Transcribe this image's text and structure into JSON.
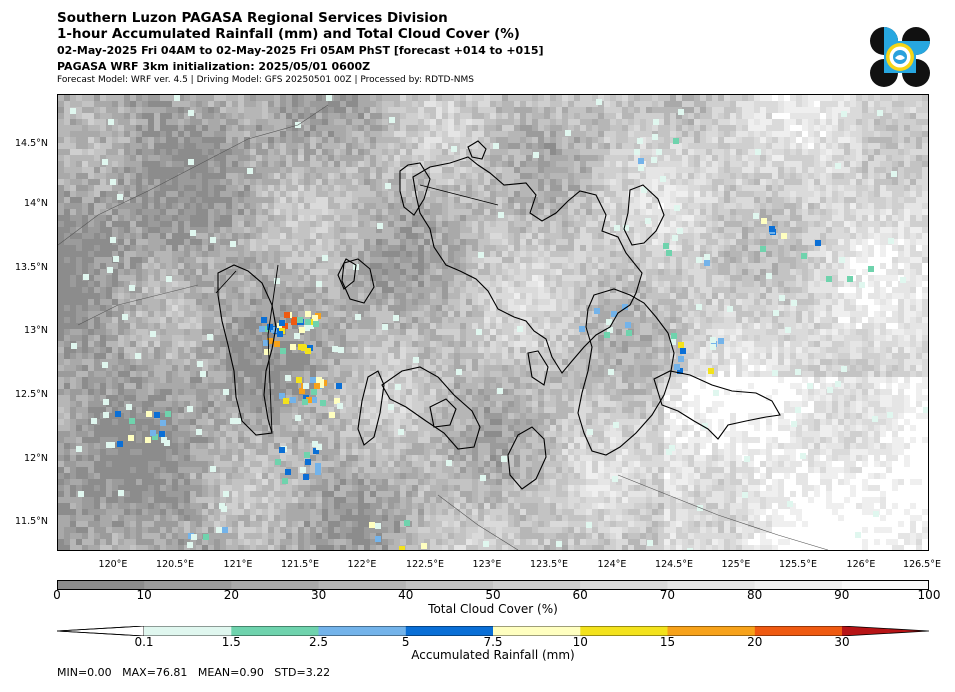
{
  "header": {
    "line1": "Southern Luzon PAGASA Regional Services Division",
    "line2": "1-hour Accumulated Rainfall (mm) and Total Cloud Cover (%)",
    "line3": "02-May-2025 Fri 04AM to 02-May-2025 Fri 05AM PhST [forecast +014 to +015]",
    "line4": "PAGASA WRF 3km initialization: 2025/05/01 0600Z",
    "line5": "Forecast Model: WRF ver. 4.5 | Driving Model: GFS 20250501 00Z | Processed by: RDTD-NMS"
  },
  "map": {
    "lat_ticks": [
      "14.5°N",
      "14°N",
      "13.5°N",
      "13°N",
      "12.5°N",
      "12°N",
      "11.5°N"
    ],
    "lon_ticks": [
      "120°E",
      "120.5°E",
      "121°E",
      "121.5°E",
      "122°E",
      "122.5°E",
      "123°E",
      "123.5°E",
      "124°E",
      "124.5°E",
      "125°E",
      "125.5°E",
      "126°E",
      "126.5°E"
    ]
  },
  "cloud_cover_bar": {
    "label": "Total Cloud Cover (%)",
    "ticks": [
      "0",
      "10",
      "20",
      "30",
      "40",
      "50",
      "60",
      "70",
      "80",
      "90",
      "100"
    ],
    "colors": [
      "#8c8c8c",
      "#9b9b9b",
      "#a9a9a9",
      "#b6b6b6",
      "#c3c3c3",
      "#cfcfcf",
      "#dadada",
      "#e5e5e5",
      "#efefef",
      "#f8f8f8"
    ]
  },
  "rainfall_bar": {
    "label": "Accumulated Rainfall (mm)",
    "ticks": [
      "0.1",
      "1.5",
      "2.5",
      "5",
      "7.5",
      "10",
      "15",
      "20",
      "30"
    ],
    "colors": [
      "#e0f7ef",
      "#6fd3ad",
      "#73b3ea",
      "#0a6fd6",
      "#ffffc0",
      "#f3e21c",
      "#f7a21a",
      "#ef5a11",
      "#b71416"
    ]
  },
  "stats": {
    "text": "MIN=0.00   MAX=76.81   MEAN=0.90   STD=3.22"
  }
}
